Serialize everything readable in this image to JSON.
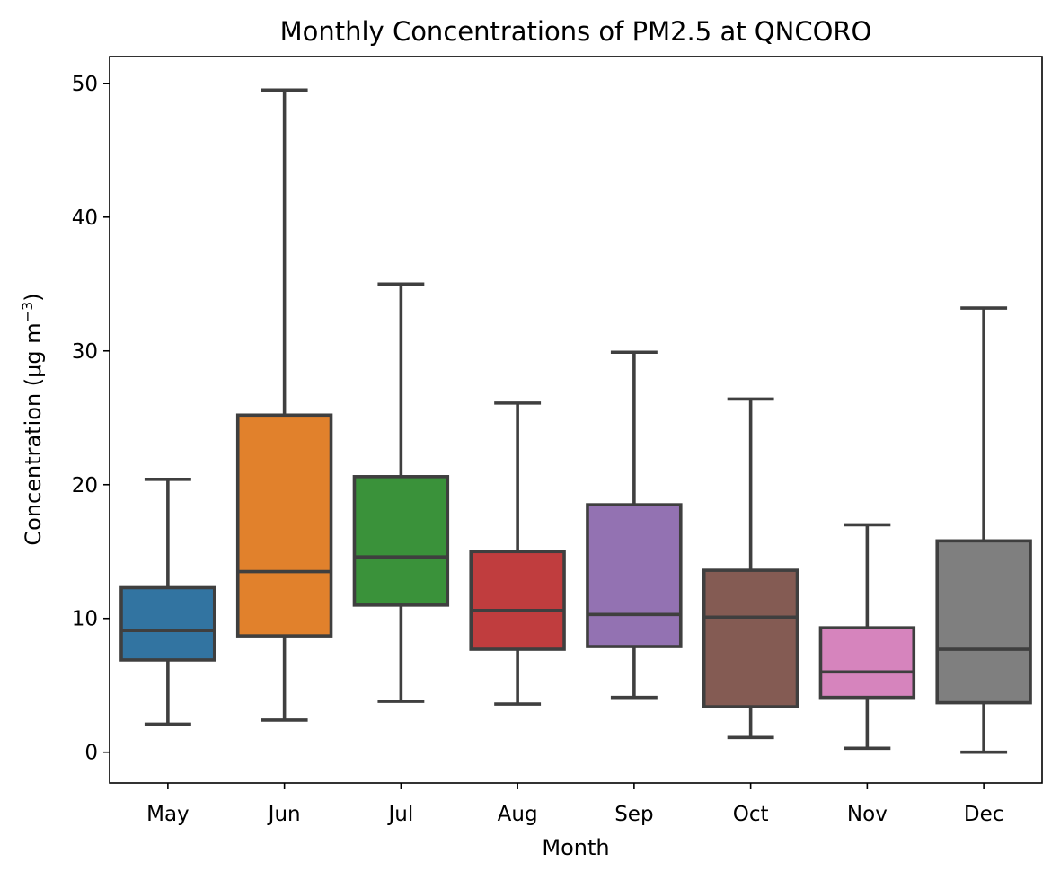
{
  "chart_data": {
    "type": "box",
    "title": "Monthly Concentrations of PM2.5 at QNCORO",
    "xlabel": "Month",
    "ylabel_main": "Concentration (μg m",
    "ylabel_sup": "−3",
    "ylabel_close": ")",
    "ylim": [
      -2.3,
      52
    ],
    "yticks": [
      0,
      10,
      20,
      30,
      40,
      50
    ],
    "grid": false,
    "categories": [
      "May",
      "Jun",
      "Jul",
      "Aug",
      "Sep",
      "Oct",
      "Nov",
      "Dec"
    ],
    "boxes": [
      {
        "category": "May",
        "whisker_low": 2.1,
        "q1": 6.9,
        "median": 9.1,
        "q3": 12.3,
        "whisker_high": 20.4,
        "color": "#3274a1"
      },
      {
        "category": "Jun",
        "whisker_low": 2.4,
        "q1": 8.7,
        "median": 13.5,
        "q3": 25.2,
        "whisker_high": 49.5,
        "color": "#e1812c"
      },
      {
        "category": "Jul",
        "whisker_low": 3.8,
        "q1": 11.0,
        "median": 14.6,
        "q3": 20.6,
        "whisker_high": 35.0,
        "color": "#3a923a"
      },
      {
        "category": "Aug",
        "whisker_low": 3.6,
        "q1": 7.7,
        "median": 10.6,
        "q3": 15.0,
        "whisker_high": 26.1,
        "color": "#c03d3e"
      },
      {
        "category": "Sep",
        "whisker_low": 4.1,
        "q1": 7.9,
        "median": 10.3,
        "q3": 18.5,
        "whisker_high": 29.9,
        "color": "#9372b2"
      },
      {
        "category": "Oct",
        "whisker_low": 1.1,
        "q1": 3.4,
        "median": 10.1,
        "q3": 13.6,
        "whisker_high": 26.4,
        "color": "#845b53"
      },
      {
        "category": "Nov",
        "whisker_low": 0.3,
        "q1": 4.1,
        "median": 6.0,
        "q3": 9.3,
        "whisker_high": 17.0,
        "color": "#d684bd"
      },
      {
        "category": "Dec",
        "whisker_low": 0.0,
        "q1": 3.7,
        "median": 7.7,
        "q3": 15.8,
        "whisker_high": 33.2,
        "color": "#7f7f7f"
      }
    ]
  }
}
